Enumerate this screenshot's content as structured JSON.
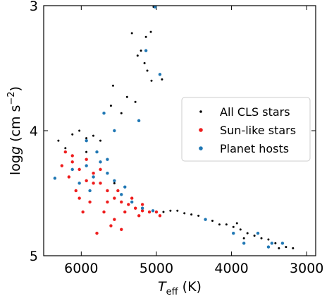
{
  "chart_data": {
    "type": "scatter",
    "xlabel": [
      "T",
      "eff",
      " (K)"
    ],
    "ylabel": [
      "log",
      "g",
      " (cm s",
      "−2",
      ")"
    ],
    "xlim": [
      6500,
      2880
    ],
    "ylim": [
      3,
      5
    ],
    "xticks": [
      6000,
      5000,
      4000,
      3000
    ],
    "yticks": [
      3,
      4,
      5
    ],
    "legend": "center-right",
    "series": [
      {
        "name": "All CLS stars",
        "color": "#000000",
        "x": [
          5326,
          5139,
          5250,
          5205,
          5158,
          5065,
          5577,
          5390,
          5605,
          5466,
          5280,
          5121,
          5074,
          5037,
          4925,
          6118,
          5932,
          5745,
          6304,
          6025,
          5839,
          5559,
          4906,
          4720,
          4534,
          4347,
          4161,
          3975,
          3788,
          3602,
          3416,
          3275,
          3182,
          3509,
          3695,
          3881,
          4068,
          4254,
          4440,
          4627,
          4813,
          3835,
          3649,
          3369,
          3928,
          6211,
          5932
        ],
        "values": [
          3.22,
          3.25,
          3.4,
          3.36,
          3.46,
          3.6,
          3.64,
          3.73,
          3.8,
          3.86,
          3.77,
          3.52,
          3.21,
          3.01,
          3.59,
          4.03,
          4.06,
          4.08,
          4.08,
          4.0,
          4.04,
          4.42,
          4.65,
          4.64,
          4.67,
          4.71,
          4.75,
          4.77,
          4.82,
          4.86,
          4.9,
          4.93,
          4.94,
          4.87,
          4.84,
          4.79,
          4.75,
          4.72,
          4.68,
          4.66,
          4.64,
          4.86,
          4.82,
          4.94,
          4.74,
          4.14,
          4.17
        ]
      },
      {
        "name": "Sun-like stars",
        "color": "#ee1c1c",
        "x": [
          6211,
          6118,
          6025,
          6164,
          5931,
          5838,
          5745,
          5652,
          5559,
          5466,
          5372,
          5279,
          5186,
          5093,
          5000,
          6071,
          5885,
          5698,
          5605,
          5466,
          5792,
          5978,
          6118,
          5838,
          5652,
          5419,
          5232,
          4953,
          6258,
          5745,
          5512,
          5326,
          5931,
          6025,
          5559,
          5186
        ],
        "values": [
          4.17,
          4.25,
          4.31,
          4.37,
          4.23,
          4.34,
          4.42,
          4.48,
          4.54,
          4.57,
          4.59,
          4.62,
          4.64,
          4.65,
          4.65,
          4.48,
          4.57,
          4.65,
          4.76,
          4.79,
          4.82,
          4.65,
          4.2,
          4.42,
          4.57,
          4.65,
          4.68,
          4.68,
          4.28,
          4.31,
          4.48,
          4.54,
          4.4,
          4.54,
          4.71,
          4.59
        ]
      },
      {
        "name": "Planet hosts",
        "color": "#1f77b4",
        "x": [
          5018,
          5139,
          4953,
          5559,
          5233,
          5698,
          6351,
          6118,
          5931,
          5838,
          5745,
          5652,
          5559,
          5466,
          5326,
          5186,
          5046,
          6025,
          5885,
          5792,
          5931,
          4347,
          3975,
          3649,
          3463,
          3322,
          3835,
          3509,
          5652,
          5419
        ],
        "values": [
          3.01,
          3.36,
          3.55,
          4.0,
          3.92,
          3.86,
          4.38,
          4.31,
          4.28,
          4.37,
          4.25,
          4.34,
          4.4,
          4.51,
          4.57,
          4.62,
          4.64,
          4.42,
          4.48,
          4.17,
          4.08,
          4.71,
          4.82,
          4.82,
          4.9,
          4.9,
          4.9,
          4.93,
          4.23,
          4.45
        ]
      }
    ]
  }
}
